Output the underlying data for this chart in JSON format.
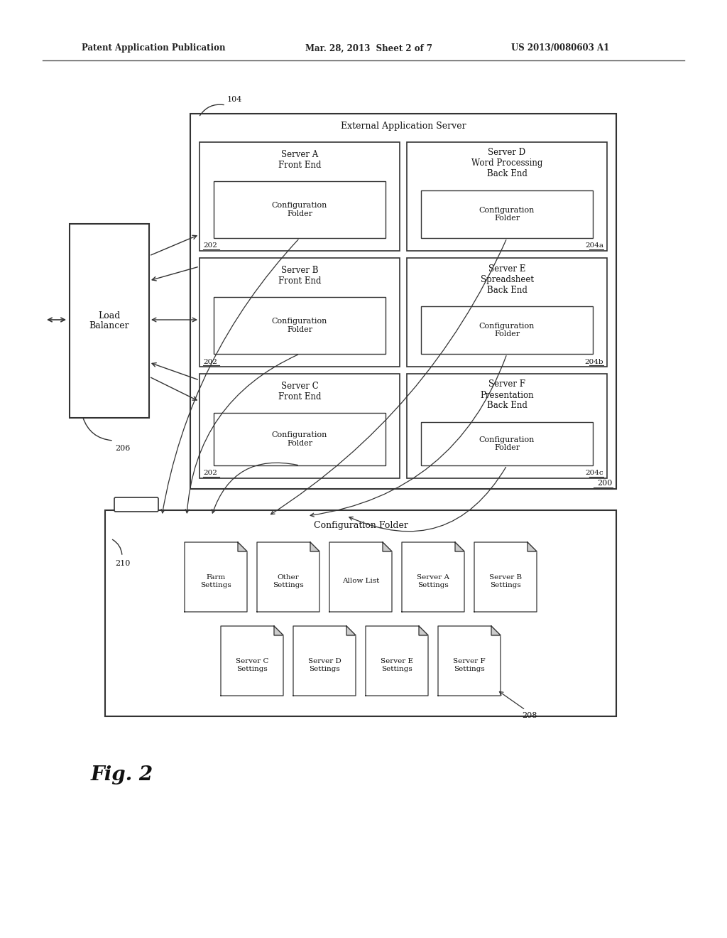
{
  "bg_color": "#ffffff",
  "header_text_left": "Patent Application Publication",
  "header_text_mid": "Mar. 28, 2013  Sheet 2 of 7",
  "header_text_right": "US 2013/0080603 A1",
  "fig_label": "Fig. 2",
  "label_104": "104",
  "label_200": "200",
  "label_202": "202",
  "label_204a": "204a",
  "label_204b": "204b",
  "label_204c": "204c",
  "label_206": "206",
  "label_208": "208",
  "label_210": "210",
  "ext_server_title": "External Application Server",
  "load_balancer_text": "Load\nBalancer",
  "config_folder_title": "Configuration\nFolder",
  "config_folder_single": "Configuration Folder",
  "server_titles_left": [
    "Server A\nFront End",
    "Server B\nFront End",
    "Server C\nFront End"
  ],
  "server_titles_right": [
    "Server D\nWord Processing\nBack End",
    "Server E\nSpreadsheet\nBack End",
    "Server F\nPresentation\nBack End"
  ],
  "doc_labels": [
    "Farm\nSettings",
    "Other\nSettings",
    "Allow List",
    "Server A\nSettings",
    "Server B\nSettings",
    "Server C\nSettings",
    "Server D\nSettings",
    "Server E\nSettings",
    "Server F\nSettings"
  ]
}
